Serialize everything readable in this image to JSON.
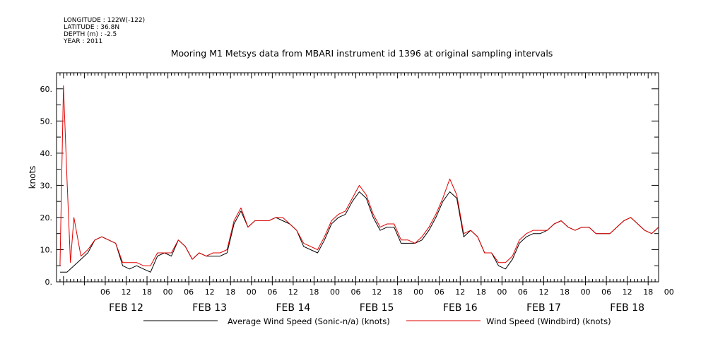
{
  "header": {
    "longitude": "LONGITUDE : 122W(-122)",
    "latitude": "LATITUDE : 36.8N",
    "depth": "DEPTH (m) : -2.5",
    "year": "YEAR : 2011"
  },
  "chart_data": {
    "type": "line",
    "title": "Mooring M1 Metsys data from MBARI instrument id 1396 at original sampling intervals",
    "ylabel": "knots",
    "xlabel": "",
    "ylim": [
      0,
      65
    ],
    "yticks": [
      "0.",
      "10.",
      "20.",
      "30.",
      "40.",
      "50.",
      "60."
    ],
    "xlim_hours": [
      -20.0,
      153.0
    ],
    "hour_tick_labels": [
      "06",
      "12",
      "18",
      "00",
      "06",
      "12",
      "18",
      "00",
      "06",
      "12",
      "18",
      "00",
      "06",
      "12",
      "18",
      "00",
      "06",
      "12",
      "18",
      "00",
      "06",
      "12",
      "18",
      "00",
      "06",
      "12",
      "18",
      "00"
    ],
    "day_labels": [
      "FEB 12",
      "FEB 13",
      "FEB 14",
      "FEB 15",
      "FEB 16",
      "FEB 17",
      "FEB 18"
    ],
    "grid": false,
    "legend_position": "bottom",
    "series": [
      {
        "name": "Average Wind Speed (Sonic-n/a) (knots)",
        "color": "#000000",
        "x": [
          -19,
          -17,
          -15,
          -13,
          -11,
          -9,
          -7,
          -5,
          -3,
          -1,
          1,
          3,
          5,
          7,
          9,
          11,
          13,
          15,
          17,
          19,
          21,
          23,
          25,
          27,
          29,
          31,
          33,
          35,
          37,
          39,
          41,
          43,
          45,
          47,
          49,
          51,
          53,
          55,
          57,
          59,
          61,
          63,
          65,
          67,
          69,
          71,
          73,
          75,
          77,
          79,
          81,
          83,
          85,
          87,
          89,
          91,
          93,
          95,
          97,
          99,
          101,
          103,
          105,
          107,
          109,
          111,
          113,
          115,
          117,
          119,
          121,
          123,
          125,
          127,
          129,
          131,
          133,
          135,
          137,
          139,
          141,
          143,
          145,
          147,
          149,
          151,
          153
        ],
        "y": [
          3,
          3,
          5,
          7,
          9,
          13,
          14,
          13,
          12,
          5,
          4,
          5,
          4,
          3,
          8,
          9,
          8,
          13,
          11,
          7,
          9,
          8,
          8,
          8,
          9,
          18,
          22,
          17,
          19,
          19,
          19,
          20,
          19,
          18,
          16,
          11,
          10,
          9,
          13,
          18,
          20,
          21,
          25,
          28,
          26,
          20,
          16,
          17,
          17,
          12,
          12,
          12,
          13,
          16,
          20,
          25,
          28,
          26,
          14,
          16,
          14,
          9,
          9,
          5,
          4,
          7,
          12,
          14,
          15,
          15,
          16,
          18,
          19,
          17,
          16,
          17,
          17,
          15,
          15,
          15,
          17,
          19,
          20,
          18,
          16,
          15,
          17
        ]
      },
      {
        "name": "Wind Speed (Windbird) (knots)",
        "color": "#e00000",
        "x": [
          -19,
          -18,
          -17,
          -16,
          -15,
          -13,
          -11,
          -9,
          -7,
          -5,
          -3,
          -1,
          1,
          3,
          5,
          7,
          9,
          11,
          13,
          15,
          17,
          19,
          21,
          23,
          25,
          27,
          29,
          31,
          33,
          35,
          37,
          39,
          41,
          43,
          45,
          47,
          49,
          51,
          53,
          55,
          57,
          59,
          61,
          63,
          65,
          67,
          69,
          71,
          73,
          75,
          77,
          79,
          81,
          83,
          85,
          87,
          89,
          91,
          93,
          95,
          97,
          99,
          101,
          103,
          105,
          107,
          109,
          111,
          113,
          115,
          117,
          119,
          121,
          123,
          125,
          127,
          129,
          131,
          133,
          135,
          137,
          139,
          141,
          143,
          145,
          147,
          149,
          151,
          153
        ],
        "y": [
          5,
          61,
          32,
          6,
          20,
          8,
          10,
          13,
          14,
          13,
          12,
          6,
          6,
          6,
          5,
          5,
          9,
          9,
          9,
          13,
          11,
          7,
          9,
          8,
          9,
          9,
          10,
          19,
          23,
          17,
          19,
          19,
          19,
          20,
          20,
          18,
          16,
          12,
          11,
          10,
          14,
          19,
          21,
          22,
          26,
          30,
          27,
          21,
          17,
          18,
          18,
          13,
          13,
          12,
          14,
          17,
          21,
          26,
          32,
          27,
          15,
          16,
          14,
          9,
          9,
          6,
          6,
          8,
          13,
          15,
          16,
          16,
          16,
          18,
          19,
          17,
          16,
          17,
          17,
          15,
          15,
          15,
          17,
          19,
          20,
          18,
          16,
          15,
          17
        ]
      }
    ]
  }
}
